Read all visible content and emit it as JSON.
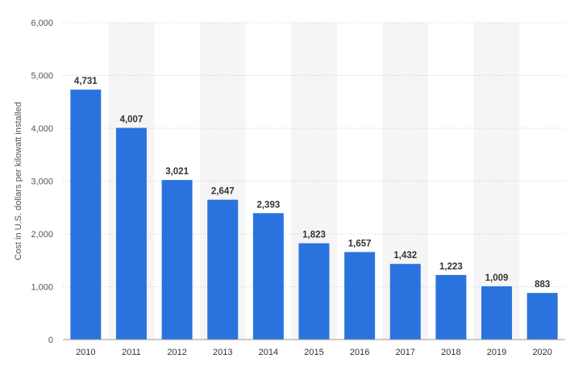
{
  "chart_data": {
    "type": "bar",
    "title": "",
    "xlabel": "",
    "ylabel": "Cost in U.S. dollars per kilowatt installed",
    "ylim": [
      0,
      6000
    ],
    "yticks": [
      0,
      1000,
      2000,
      3000,
      4000,
      5000,
      6000
    ],
    "ytick_labels": [
      "0",
      "1,000",
      "2,000",
      "3,000",
      "4,000",
      "5,000",
      "6,000"
    ],
    "categories": [
      "2010",
      "2011",
      "2012",
      "2013",
      "2014",
      "2015",
      "2016",
      "2017",
      "2018",
      "2019",
      "2020"
    ],
    "values": [
      4731,
      4007,
      3021,
      2647,
      2393,
      1823,
      1657,
      1432,
      1223,
      1009,
      883
    ],
    "value_labels": [
      "4,731",
      "4,007",
      "3,021",
      "2,647",
      "2,393",
      "1,823",
      "1,657",
      "1,432",
      "1,223",
      "1,009",
      "883"
    ],
    "grid": true,
    "alternating_column_shading": true,
    "legend": "none",
    "colors": {
      "bar": "#2a73de",
      "grid": "#cfcfcf",
      "band": "#f5f5f5",
      "axis": "#999999"
    }
  }
}
